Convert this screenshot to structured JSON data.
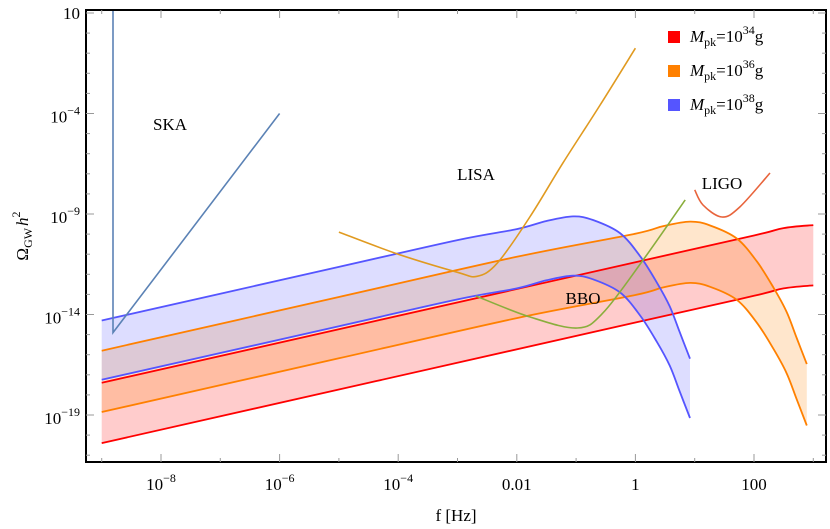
{
  "chart_data": {
    "type": "line",
    "xlabel": "f [Hz]",
    "ylabel": {
      "main": "Ω",
      "sub": "GW",
      "var": "h",
      "sup": "2"
    },
    "x_scale": "log",
    "y_scale": "log",
    "xlim_log10": [
      -9.26,
      3.2
    ],
    "ylim_log10": [
      -21.3,
      1.15
    ],
    "x_ticks": [
      {
        "log10": -8,
        "base": "10",
        "exp": "−8"
      },
      {
        "log10": -6,
        "base": "10",
        "exp": "−6"
      },
      {
        "log10": -4,
        "base": "10",
        "exp": "−4"
      },
      {
        "log10": -2,
        "base": "0.01",
        "exp": ""
      },
      {
        "log10": 0,
        "base": "1",
        "exp": ""
      },
      {
        "log10": 2,
        "base": "100",
        "exp": ""
      }
    ],
    "y_ticks": [
      {
        "log10": 1,
        "base": "10",
        "exp": ""
      },
      {
        "log10": -4,
        "base": "10",
        "exp": "−4"
      },
      {
        "log10": -9,
        "base": "10",
        "exp": "−9"
      },
      {
        "log10": -14,
        "base": "10",
        "exp": "−14"
      },
      {
        "log10": -19,
        "base": "10",
        "exp": "−19"
      }
    ],
    "grid": false,
    "legend_position": "top-right",
    "bands": [
      {
        "name": "M_pk=10^34 g",
        "legend": {
          "m": "M",
          "sub": "pk",
          "eq": "=10",
          "sup": "34",
          "unit": "g"
        },
        "color": "#ff0000",
        "upper": [
          [
            -9,
            -17.4
          ],
          [
            0,
            -11.4
          ],
          [
            2,
            -10.07
          ],
          [
            2.5,
            -9.7
          ],
          [
            3,
            -9.55
          ]
        ],
        "lower": [
          [
            -9,
            -20.4
          ],
          [
            0,
            -14.4
          ],
          [
            2,
            -13.07
          ],
          [
            2.5,
            -12.7
          ],
          [
            3,
            -12.55
          ]
        ]
      },
      {
        "name": "M_pk=10^36 g",
        "legend": {
          "m": "M",
          "sub": "pk",
          "eq": "=10",
          "sup": "36",
          "unit": "g"
        },
        "color": "#ff8000",
        "upper": [
          [
            -9,
            -15.8
          ],
          [
            -5,
            -13.13
          ],
          [
            -2,
            -11.13
          ],
          [
            -0.03,
            -10.0
          ],
          [
            0.47,
            -9.6
          ],
          [
            0.92,
            -9.38
          ],
          [
            1.26,
            -9.57
          ],
          [
            1.71,
            -10.22
          ],
          [
            2.05,
            -11.37
          ],
          [
            2.33,
            -12.67
          ],
          [
            2.55,
            -13.87
          ],
          [
            2.72,
            -15.17
          ],
          [
            2.89,
            -16.47
          ]
        ],
        "lower": [
          [
            -9,
            -18.85
          ],
          [
            -5,
            -16.18
          ],
          [
            -2,
            -14.18
          ],
          [
            -0.03,
            -13.05
          ],
          [
            0.47,
            -12.65
          ],
          [
            0.92,
            -12.43
          ],
          [
            1.26,
            -12.62
          ],
          [
            1.71,
            -13.27
          ],
          [
            2.05,
            -14.42
          ],
          [
            2.33,
            -15.72
          ],
          [
            2.55,
            -16.92
          ],
          [
            2.72,
            -18.22
          ],
          [
            2.89,
            -19.52
          ]
        ]
      },
      {
        "name": "M_pk=10^38 g",
        "legend": {
          "m": "M",
          "sub": "pk",
          "eq": "=10",
          "sup": "38",
          "unit": "g"
        },
        "color": "#5555ff",
        "upper": [
          [
            -9,
            -14.3
          ],
          [
            -5,
            -11.63
          ],
          [
            -3,
            -10.3
          ],
          [
            -2,
            -9.75
          ],
          [
            -1.5,
            -9.35
          ],
          [
            -1.05,
            -9.12
          ],
          [
            -0.715,
            -9.3
          ],
          [
            -0.26,
            -9.95
          ],
          [
            0.08,
            -11.1
          ],
          [
            0.36,
            -12.4
          ],
          [
            0.58,
            -13.6
          ],
          [
            0.75,
            -14.9
          ],
          [
            0.92,
            -16.2
          ]
        ],
        "lower": [
          [
            -9,
            -17.25
          ],
          [
            -5,
            -14.58
          ],
          [
            -3,
            -13.25
          ],
          [
            -2,
            -12.7
          ],
          [
            -1.5,
            -12.3
          ],
          [
            -1.05,
            -12.07
          ],
          [
            -0.715,
            -12.25
          ],
          [
            -0.26,
            -12.9
          ],
          [
            0.08,
            -14.05
          ],
          [
            0.36,
            -15.35
          ],
          [
            0.58,
            -16.55
          ],
          [
            0.75,
            -17.85
          ],
          [
            0.92,
            -19.15
          ]
        ]
      }
    ],
    "detectors": [
      {
        "name": "SKA",
        "color": "#5b82b5",
        "smooth": false,
        "points": [
          [
            -8.81,
            3
          ],
          [
            -8.81,
            -14.9
          ],
          [
            -6,
            -4
          ]
        ]
      },
      {
        "name": "LISA",
        "color": "#e09a20",
        "smooth": true,
        "points": [
          [
            -5,
            -9.9
          ],
          [
            -4,
            -11.0
          ],
          [
            -3,
            -11.9
          ],
          [
            -2.67,
            -12.1
          ],
          [
            -2.33,
            -11.45
          ],
          [
            -1.78,
            -9.15
          ],
          [
            -1.22,
            -6.45
          ],
          [
            -0.6,
            -3.6
          ],
          [
            0,
            -0.75
          ]
        ]
      },
      {
        "name": "BBO",
        "color": "#8aae3c",
        "smooth": true,
        "points": [
          [
            -2.69,
            -13.08
          ],
          [
            -1.78,
            -14.12
          ],
          [
            -0.98,
            -14.67
          ],
          [
            -0.55,
            -13.93
          ],
          [
            0.13,
            -11.29
          ],
          [
            0.84,
            -8.3
          ]
        ]
      },
      {
        "name": "LIGO",
        "color": "#e8643c",
        "smooth": true,
        "points": [
          [
            1.0,
            -7.8
          ],
          [
            1.14,
            -8.55
          ],
          [
            1.46,
            -9.15
          ],
          [
            1.76,
            -8.65
          ],
          [
            2.27,
            -6.96
          ]
        ]
      }
    ]
  }
}
